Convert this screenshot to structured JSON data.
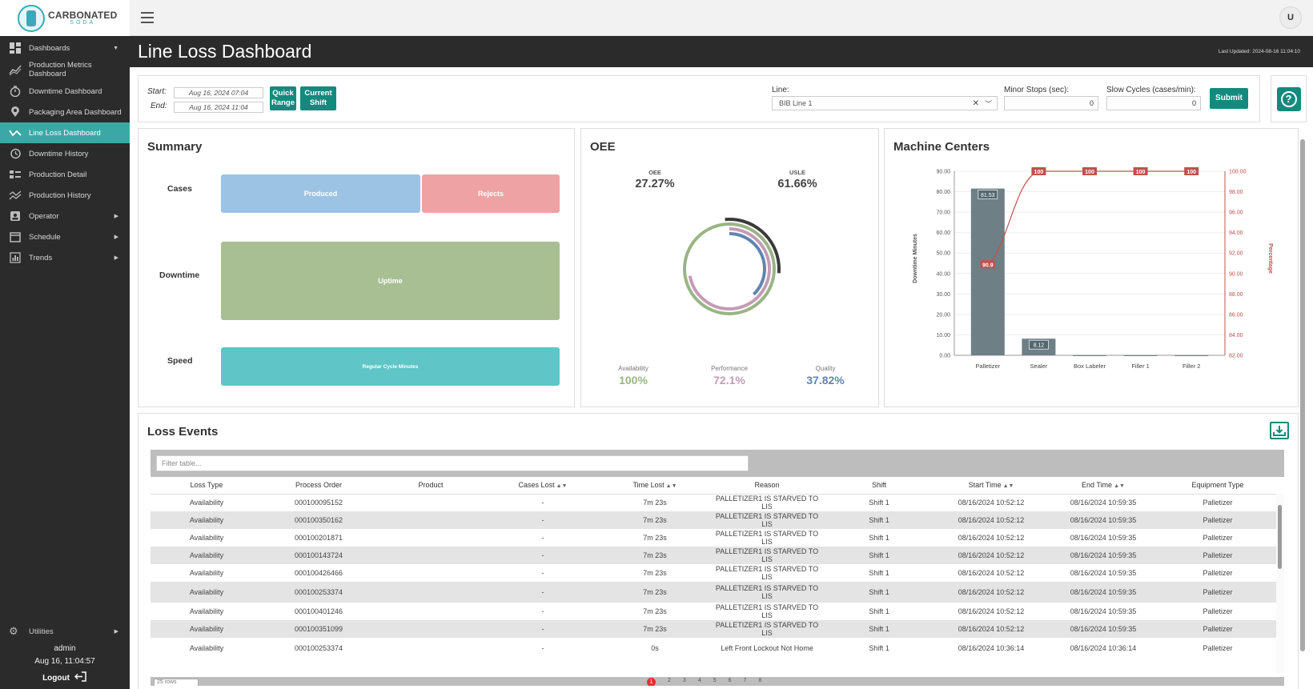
{
  "brand": {
    "line1": "CARBONATED",
    "line2": "SODA"
  },
  "sidebar": {
    "items": [
      {
        "label": "Dashboards",
        "icon": "dashboard-grid-icon"
      },
      {
        "label": "Production Metrics Dashboard",
        "icon": "trend-chart-icon"
      },
      {
        "label": "Downtime Dashboard",
        "icon": "stopwatch-icon"
      },
      {
        "label": "Packaging Area Dashboard",
        "icon": "map-pin-icon"
      },
      {
        "label": "Line Loss Dashboard",
        "icon": "line-trend-icon"
      },
      {
        "label": "Downtime History",
        "icon": "history-icon"
      },
      {
        "label": "Production Detail",
        "icon": "detail-list-icon"
      },
      {
        "label": "Production History",
        "icon": "chart-history-icon"
      },
      {
        "label": "Operator",
        "icon": "operator-badge-icon"
      },
      {
        "label": "Schedule",
        "icon": "calendar-icon"
      },
      {
        "label": "Trends",
        "icon": "bar-chart-icon"
      }
    ],
    "utilities": "Utilities",
    "user": "admin",
    "datetime": "Aug 16, 11:04:57",
    "logout": "Logout"
  },
  "topbar": {
    "avatar_initial": "U"
  },
  "header": {
    "title": "Line Loss Dashboard",
    "last_updated": "Last Updated: 2024-08-16 11:04:10"
  },
  "filters": {
    "start_label": "Start:",
    "start_value": "Aug 16, 2024 07:04",
    "end_label": "End:",
    "end_value": "Aug 16, 2024 11:04",
    "quick_range_l1": "Quick",
    "quick_range_l2": "Range",
    "current_shift_l1": "Current",
    "current_shift_l2": "Shift",
    "line_label": "Line:",
    "line_value": "BIB Line 1",
    "minor_stops_label": "Minor Stops (sec):",
    "minor_stops_value": "0",
    "slow_cycles_label": "Slow Cycles (cases/min):",
    "slow_cycles_value": "0",
    "submit": "Submit"
  },
  "summary": {
    "title": "Summary",
    "cases_label": "Cases",
    "produced": "Produced",
    "rejects": "Rejects",
    "downtime_label": "Downtime",
    "uptime": "Uptime",
    "speed_label": "Speed",
    "regular_cycle": "Regular Cycle Minutes",
    "produced_fraction": 0.615,
    "colors": {
      "produced": "#9cc3e3",
      "rejects": "#eea2a4",
      "uptime": "#a8be93",
      "speed": "#5fc5c6"
    }
  },
  "oee": {
    "title": "OEE",
    "oee_label": "OEE",
    "oee_value": "27.27%",
    "usle_label": "USLE",
    "usle_value": "61.66%",
    "availability_label": "Availability",
    "availability_value": "100%",
    "performance_label": "Performance",
    "performance_value": "72.1%",
    "quality_label": "Quality",
    "quality_value": "37.82%",
    "colors": {
      "availability": "#9ab585",
      "performance": "#c49bb6",
      "quality": "#5f85b0",
      "usle": "#3a3a3a"
    }
  },
  "machine_centers": {
    "title": "Machine Centers"
  },
  "chart_data": {
    "type": "bar",
    "categories": [
      "Palletizer",
      "Sealer",
      "Box Labeler",
      "Filler 1",
      "Filler 2"
    ],
    "series": [
      {
        "values": [
          81.53,
          8.12,
          0,
          0,
          0
        ],
        "axis": "left",
        "color": "#6e7f85"
      },
      {
        "values": [
          90.9,
          100,
          100,
          100,
          100
        ],
        "axis": "right",
        "type": "line",
        "color": "#c0504d"
      }
    ],
    "ylabel": "Downtime Minutes",
    "y2label": "Percentage",
    "ylim": [
      0,
      90
    ],
    "y2lim": [
      82,
      100
    ],
    "yticks": [
      "0.00",
      "10.00",
      "20.00",
      "30.00",
      "40.00",
      "50.00",
      "60.00",
      "70.00",
      "80.00",
      "90.00"
    ],
    "y2ticks": [
      "82.00",
      "84.00",
      "86.00",
      "88.00",
      "90.00",
      "92.00",
      "94.00",
      "96.00",
      "98.00",
      "100.00"
    ],
    "bar_labels": [
      "81.53",
      "8.12"
    ],
    "line_labels": [
      "90.9",
      "100",
      "100",
      "100",
      "100"
    ]
  },
  "loss_events": {
    "title": "Loss Events",
    "filter_placeholder": "Filter table...",
    "columns": [
      "Loss Type",
      "Process Order",
      "Product",
      "Cases Lost",
      "Time Lost",
      "Reason",
      "Shift",
      "Start Time",
      "End Time",
      "Equipment Type"
    ],
    "rows": [
      [
        "Availability",
        "000100095152",
        "",
        "-",
        "7m 23s",
        "PALLETIZER1 IS STARVED TO LIS",
        "Shift 1",
        "08/16/2024 10:52:12",
        "08/16/2024 10:59:35",
        "Palletizer"
      ],
      [
        "Availability",
        "000100350162",
        "",
        "-",
        "7m 23s",
        "PALLETIZER1 IS STARVED TO LIS",
        "Shift 1",
        "08/16/2024 10:52:12",
        "08/16/2024 10:59:35",
        "Palletizer"
      ],
      [
        "Availability",
        "000100201871",
        "",
        "-",
        "7m 23s",
        "PALLETIZER1 IS STARVED TO LIS",
        "Shift 1",
        "08/16/2024 10:52:12",
        "08/16/2024 10:59:35",
        "Palletizer"
      ],
      [
        "Availability",
        "000100143724",
        "",
        "-",
        "7m 23s",
        "PALLETIZER1 IS STARVED TO LIS",
        "Shift 1",
        "08/16/2024 10:52:12",
        "08/16/2024 10:59:35",
        "Palletizer"
      ],
      [
        "Availability",
        "000100426466",
        "",
        "-",
        "7m 23s",
        "PALLETIZER1 IS STARVED TO LIS",
        "Shift 1",
        "08/16/2024 10:52:12",
        "08/16/2024 10:59:35",
        "Palletizer"
      ],
      [
        "Availability",
        "000100253374",
        "",
        "-",
        "7m 23s",
        "PALLETIZER1 IS STARVED TO LIS",
        "Shift 1",
        "08/16/2024 10:52:12",
        "08/16/2024 10:59:35",
        "Palletizer"
      ],
      [
        "Availability",
        "000100401246",
        "",
        "-",
        "7m 23s",
        "PALLETIZER1 IS STARVED TO LIS",
        "Shift 1",
        "08/16/2024 10:52:12",
        "08/16/2024 10:59:35",
        "Palletizer"
      ],
      [
        "Availability",
        "000100351099",
        "",
        "-",
        "7m 23s",
        "PALLETIZER1 IS STARVED TO LIS",
        "Shift 1",
        "08/16/2024 10:52:12",
        "08/16/2024 10:59:35",
        "Palletizer"
      ],
      [
        "Availability",
        "000100253374",
        "",
        "-",
        "0s",
        "Left Front Lockout Not Home",
        "Shift 1",
        "08/16/2024 10:36:14",
        "08/16/2024 10:36:14",
        "Palletizer"
      ]
    ],
    "page_size": "25 rows",
    "pages": [
      "1",
      "2",
      "3",
      "4",
      "5",
      "6",
      "7",
      "8"
    ]
  },
  "accent": "#138a7d",
  "active_nav": "#3aa9a6"
}
